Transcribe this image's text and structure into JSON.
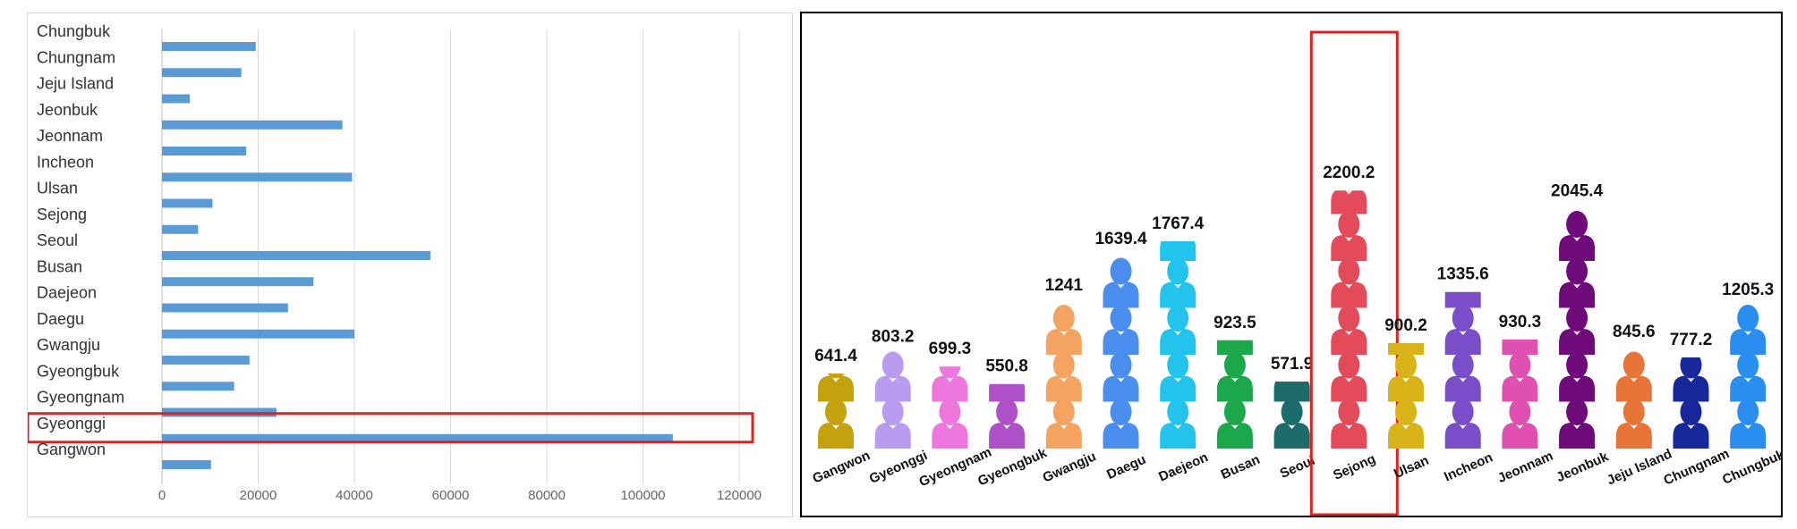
{
  "chart_data": [
    {
      "type": "bar",
      "orientation": "horizontal",
      "categories": [
        "Chungbuk",
        "Chungnam",
        "Jeju Island",
        "Jeonbuk",
        "Jeonnam",
        "Incheon",
        "Ulsan",
        "Sejong",
        "Seoul",
        "Busan",
        "Daejeon",
        "Daegu",
        "Gwangju",
        "Gyeongbuk",
        "Gyeongnam",
        "Gyeonggi",
        "Gangwon"
      ],
      "values": [
        19500,
        16500,
        5800,
        37500,
        17500,
        39500,
        10500,
        7500,
        55800,
        31500,
        26200,
        40000,
        18200,
        15000,
        23800,
        106200,
        10200
      ],
      "xlim": [
        0,
        120000
      ],
      "xticks": [
        "0",
        "20000",
        "40000",
        "60000",
        "80000",
        "100000",
        "120000"
      ],
      "grid": "vertical",
      "highlight": "Gyeonggi",
      "bar_color": "#5b9bd5",
      "highlight_color": "#e02020"
    },
    {
      "type": "bar",
      "style": "pictogram",
      "categories": [
        "Gangwon",
        "Gyeonggi",
        "Gyeongnam",
        "Gyeongbuk",
        "Gwangju",
        "Daegu",
        "Daejeon",
        "Busan",
        "Seoul",
        "Sejong",
        "Ulsan",
        "Incheon",
        "Jeonnam",
        "Jeonbuk",
        "Jeju Island",
        "Chungnam",
        "Chungbuk"
      ],
      "values": [
        641.4,
        803.2,
        699.3,
        550.8,
        1241,
        1639.4,
        1767.4,
        923.5,
        571.9,
        2200.2,
        900.2,
        1335.6,
        930.3,
        2045.4,
        845.6,
        777.2,
        1205.3
      ],
      "value_labels": [
        "641.4",
        "803.2",
        "699.3",
        "550.8",
        "1241",
        "1639.4",
        "1767.4",
        "923.5",
        "571.9",
        "2200.2",
        "900.2",
        "1335.6",
        "930.3",
        "2045.4",
        "845.6",
        "777.2",
        "1205.3"
      ],
      "colors": [
        "#c4a20e",
        "#b79cf0",
        "#ee77dd",
        "#b050c8",
        "#f4a460",
        "#4a8ef0",
        "#22c4ee",
        "#1aa84a",
        "#1c6c6c",
        "#e34a5a",
        "#d8b418",
        "#7a4ec8",
        "#e050b0",
        "#6e0a7a",
        "#e87438",
        "#16289a",
        "#2a8ef0"
      ],
      "highlight": "Sejong",
      "highlight_color": "#e02020"
    }
  ]
}
